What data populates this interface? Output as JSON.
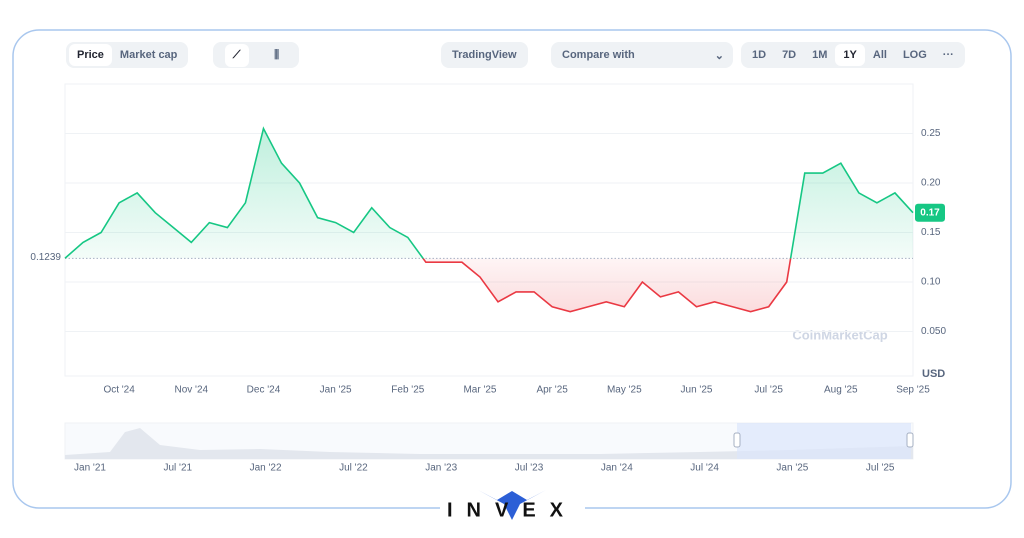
{
  "toolbar": {
    "tabs": [
      "Price",
      "Market cap"
    ],
    "tradingview": "TradingView",
    "compare": "Compare with",
    "ranges": [
      "1D",
      "7D",
      "1M",
      "1Y",
      "All",
      "LOG"
    ],
    "more": "···"
  },
  "chart_data": {
    "type": "line",
    "categories": [
      null,
      null,
      null,
      "Oct '24",
      null,
      null,
      null,
      "Nov '24",
      null,
      null,
      null,
      "Dec '24",
      null,
      null,
      null,
      "Jan '25",
      null,
      null,
      null,
      "Feb '25",
      null,
      null,
      null,
      "Mar '25",
      null,
      null,
      null,
      "Apr '25",
      null,
      null,
      null,
      "May '25",
      null,
      null,
      null,
      "Jun '25",
      null,
      null,
      null,
      "Jul '25",
      null,
      null,
      null,
      "Aug '25",
      null,
      null,
      null,
      "Sep '25"
    ],
    "series": [
      {
        "color": "#16c784",
        "below_color": "#ea3943",
        "values": [
          0.124,
          0.14,
          0.15,
          0.18,
          0.19,
          0.17,
          0.155,
          0.14,
          0.16,
          0.155,
          0.18,
          0.255,
          0.22,
          0.2,
          0.165,
          0.16,
          0.15,
          0.175,
          0.155,
          0.145,
          0.12,
          0.12,
          0.12,
          0.105,
          0.08,
          0.09,
          0.09,
          0.075,
          0.07,
          0.075,
          0.08,
          0.075,
          0.1,
          0.085,
          0.09,
          0.075,
          0.08,
          0.075,
          0.07,
          0.075,
          0.1,
          0.21,
          0.21,
          0.22,
          0.19,
          0.18,
          0.19,
          0.17
        ]
      }
    ],
    "baseline": 0.1239,
    "ylim": [
      0,
      0.3
    ],
    "yticks": [
      {
        "value": 0.05,
        "label": "0.050"
      },
      {
        "value": 0.1,
        "label": "0.10"
      },
      0.15,
      {
        "value": 0.2,
        "label": "0.20"
      },
      0.25
    ],
    "y_unit": "USD",
    "grid": true,
    "watermark": "CoinMarketCap"
  },
  "navigator": {
    "labels": [
      "Jan '21",
      "Jul '21",
      "Jan '22",
      "Jul '22",
      "Jan '23",
      "Jul '23",
      "Jan '24",
      "Jul '24",
      "Jan '25",
      "Jul '25"
    ]
  },
  "brand": "INVEX"
}
